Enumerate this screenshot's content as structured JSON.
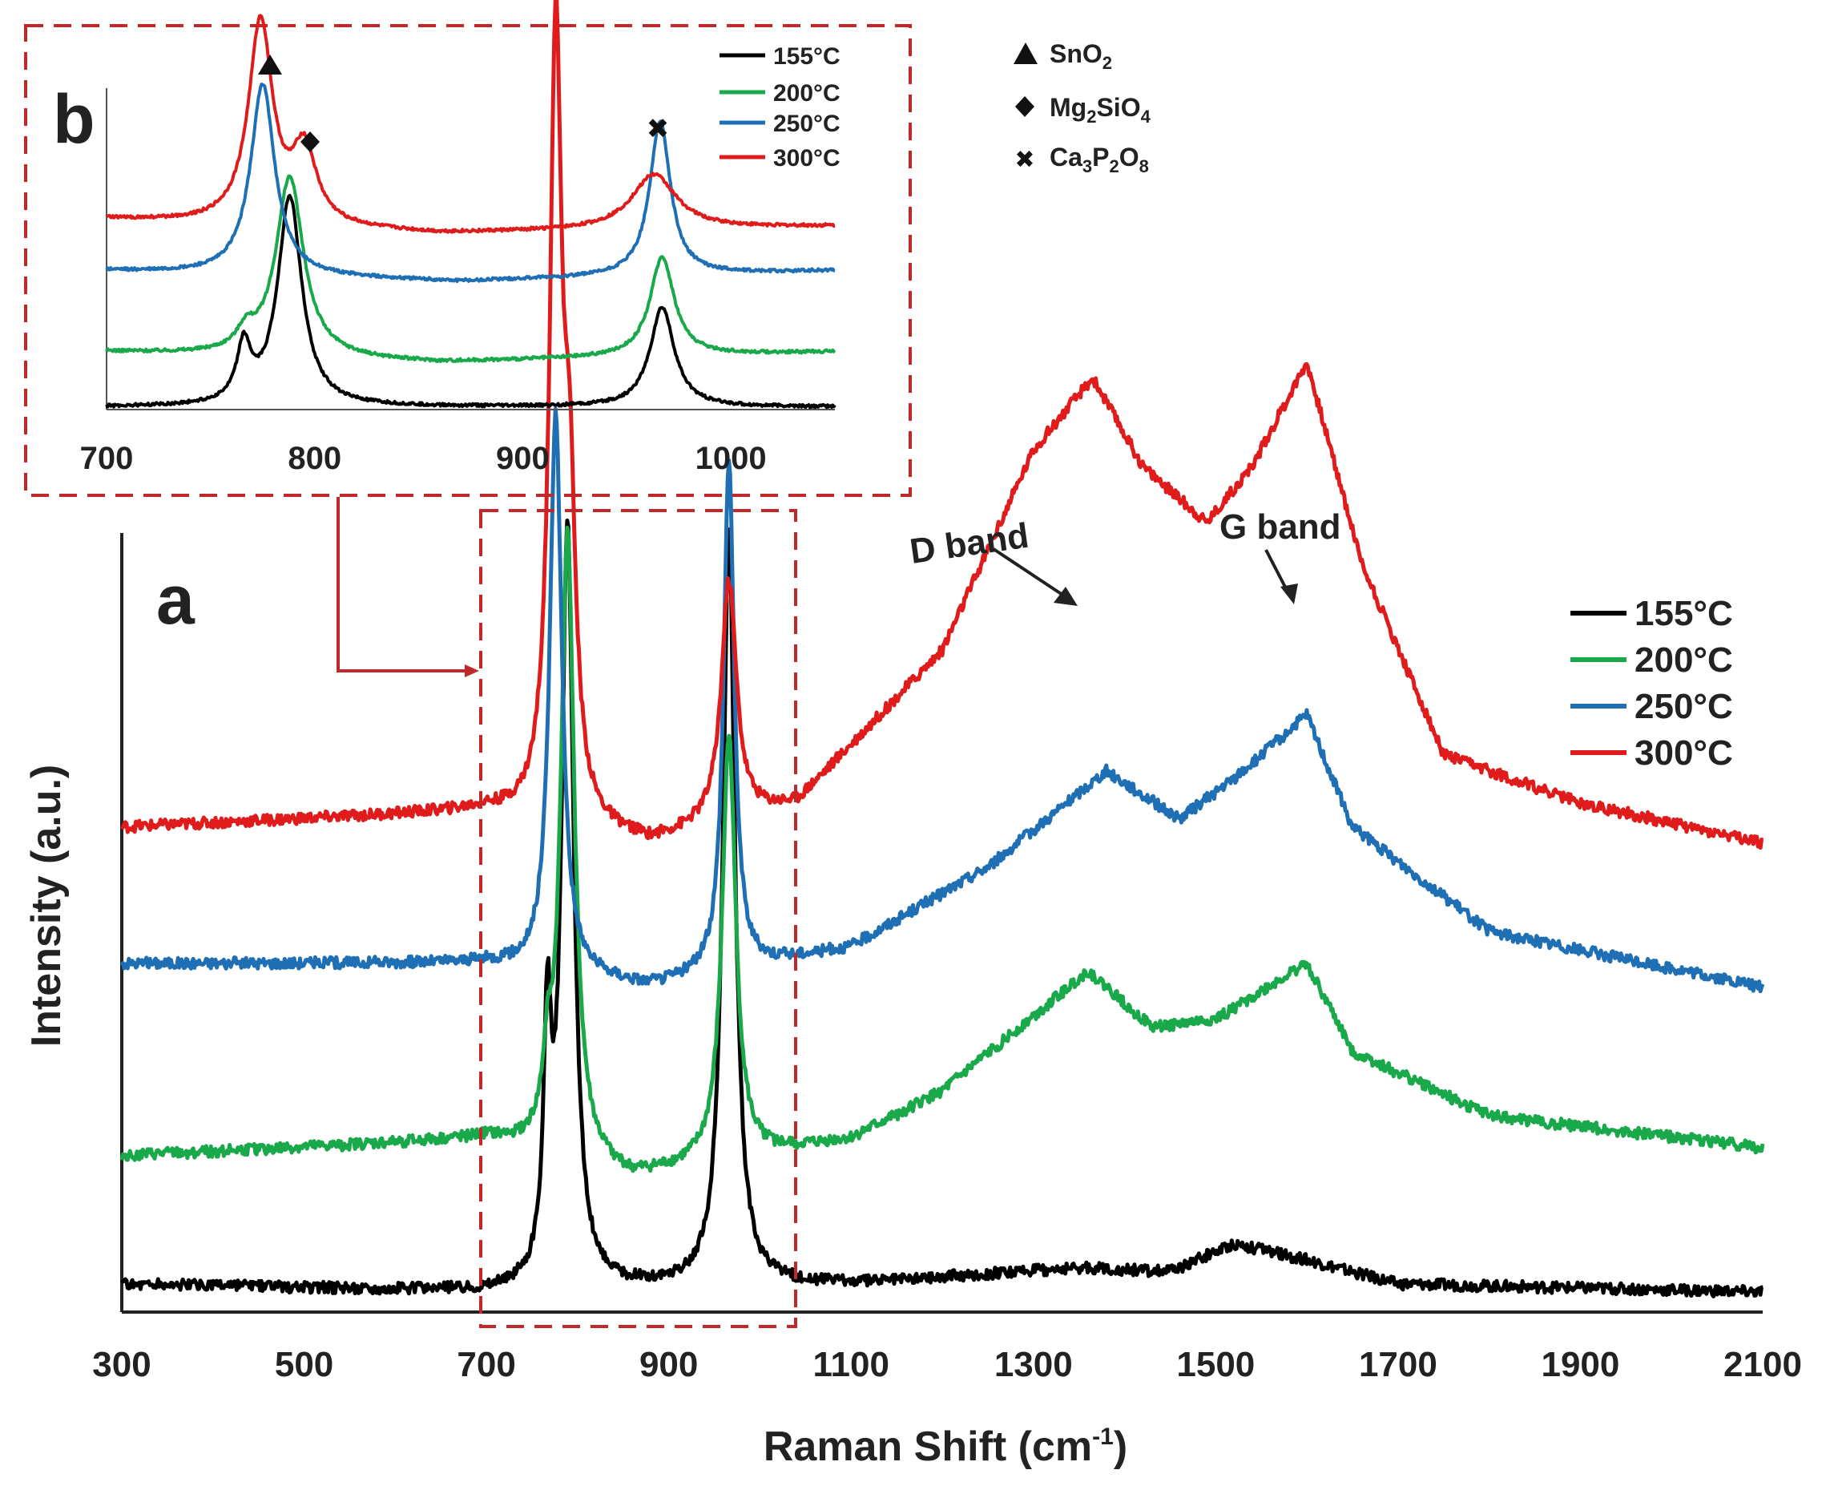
{
  "chart_data": [
    {
      "panel": "a",
      "type": "line",
      "xlabel": "Raman Shift (cm",
      "xlabel_sup": "-1",
      "xlabel_end": ")",
      "ylabel": "Intensity (a.u.)",
      "xlim": [
        300,
        2100
      ],
      "xticks": [
        "300",
        "500",
        "700",
        "900",
        "1100",
        "1300",
        "1500",
        "1700",
        "1900",
        "2100"
      ],
      "legend": [
        "155°C",
        "200°C",
        "250°C",
        "300°C"
      ],
      "annotations": [
        "D band",
        "G band"
      ],
      "series": [
        {
          "name": "155°C",
          "color": "#000000",
          "offset": 0.0,
          "baseline": [
            [
              300,
              0.02
            ],
            [
              700,
              0.01
            ],
            [
              1100,
              0.02
            ],
            [
              1350,
              0.04
            ],
            [
              1450,
              0.035
            ],
            [
              1520,
              0.07
            ],
            [
              1600,
              0.05
            ],
            [
              1700,
              0.02
            ],
            [
              2100,
              0.01
            ]
          ],
          "peaks": [
            [
              767,
              0.3,
              5
            ],
            [
              789,
              0.95,
              8
            ],
            [
              966,
              0.94,
              8
            ]
          ]
        },
        {
          "name": "200°C",
          "color": "#19a84a",
          "offset": 0.15,
          "baseline": [
            [
              300,
              0.03
            ],
            [
              700,
              0.05
            ],
            [
              860,
              0.0
            ],
            [
              1100,
              0.05
            ],
            [
              1200,
              0.11
            ],
            [
              1360,
              0.26
            ],
            [
              1430,
              0.19
            ],
            [
              1500,
              0.2
            ],
            [
              1600,
              0.27
            ],
            [
              1650,
              0.16
            ],
            [
              1800,
              0.08
            ],
            [
              2100,
              0.04
            ]
          ],
          "peaks": [
            [
              767,
              0.08,
              6
            ],
            [
              789,
              0.78,
              9
            ],
            [
              966,
              0.53,
              9
            ]
          ]
        },
        {
          "name": "250°C",
          "color": "#1f6fb5",
          "offset": 0.39,
          "baseline": [
            [
              300,
              0.03
            ],
            [
              700,
              0.03
            ],
            [
              880,
              0.0
            ],
            [
              1100,
              0.05
            ],
            [
              1250,
              0.15
            ],
            [
              1380,
              0.27
            ],
            [
              1460,
              0.21
            ],
            [
              1520,
              0.26
            ],
            [
              1600,
              0.34
            ],
            [
              1650,
              0.2
            ],
            [
              1800,
              0.07
            ],
            [
              2100,
              0.0
            ]
          ],
          "peaks": [
            [
              776,
              0.7,
              8
            ],
            [
              966,
              0.64,
              7
            ]
          ]
        },
        {
          "name": "300°C",
          "color": "#e01b1b",
          "offset": 0.59,
          "baseline": [
            [
              300,
              0.0
            ],
            [
              700,
              0.02
            ],
            [
              880,
              -0.02
            ],
            [
              1040,
              0.03
            ],
            [
              1200,
              0.22
            ],
            [
              1300,
              0.47
            ],
            [
              1365,
              0.56
            ],
            [
              1420,
              0.45
            ],
            [
              1490,
              0.38
            ],
            [
              1540,
              0.45
            ],
            [
              1600,
              0.58
            ],
            [
              1660,
              0.33
            ],
            [
              1750,
              0.09
            ],
            [
              1900,
              0.03
            ],
            [
              2100,
              -0.02
            ]
          ],
          "peaks": [
            [
              776,
              0.96,
              8
            ],
            [
              791,
              0.35,
              8
            ],
            [
              966,
              0.3,
              10
            ]
          ]
        }
      ]
    },
    {
      "panel": "b",
      "type": "line",
      "xlim": [
        700,
        1050
      ],
      "xticks": [
        "700",
        "800",
        "900",
        "1000"
      ],
      "legend": [
        "155°C",
        "200°C",
        "250°C",
        "300°C"
      ],
      "series": [
        {
          "name": "155°C",
          "color": "#000000",
          "offset": 0.0,
          "baseline": [
            [
              700,
              0.0
            ],
            [
              1050,
              0.0
            ]
          ],
          "peaks": [
            [
              766,
              0.15,
              4
            ],
            [
              788,
              0.57,
              7
            ],
            [
              967,
              0.27,
              7
            ]
          ]
        },
        {
          "name": "200°C",
          "color": "#19a84a",
          "offset": 0.15,
          "baseline": [
            [
              700,
              0.0
            ],
            [
              860,
              -0.03
            ],
            [
              1050,
              0.0
            ]
          ],
          "peaks": [
            [
              767,
              0.05,
              5
            ],
            [
              788,
              0.49,
              8
            ],
            [
              967,
              0.27,
              7
            ]
          ]
        },
        {
          "name": "250°C",
          "color": "#1f6fb5",
          "offset": 0.37,
          "baseline": [
            [
              700,
              0.0
            ],
            [
              870,
              -0.03
            ],
            [
              1050,
              0.0
            ]
          ],
          "peaks": [
            [
              775,
              0.52,
              7
            ],
            [
              966,
              0.42,
              6
            ]
          ]
        },
        {
          "name": "300°C",
          "color": "#e01b1b",
          "offset": 0.51,
          "baseline": [
            [
              700,
              0.0
            ],
            [
              860,
              -0.04
            ],
            [
              1050,
              -0.02
            ]
          ],
          "peaks": [
            [
              774,
              0.55,
              7
            ],
            [
              795,
              0.2,
              7
            ],
            [
              963,
              0.15,
              13
            ]
          ]
        }
      ]
    }
  ],
  "markers_legend": [
    {
      "symbol": "triangle",
      "label": "SnO",
      "sub": "2"
    },
    {
      "symbol": "diamond",
      "label": "Mg",
      "sub": "2",
      "label2": "SiO",
      "sub2": "4"
    },
    {
      "symbol": "cross",
      "label": "Ca",
      "sub": "3",
      "label2": "P",
      "sub2": "2",
      "label3": "O",
      "sub3": "8"
    }
  ],
  "colors": {
    "frame": "#c0282a",
    "axis": "#222222"
  }
}
